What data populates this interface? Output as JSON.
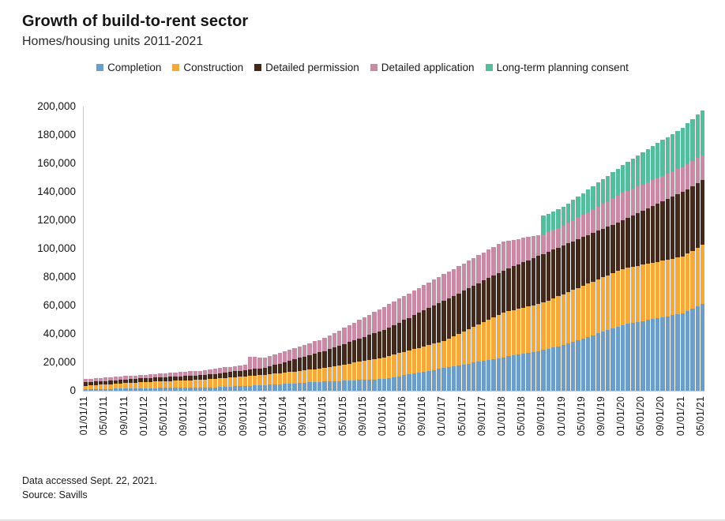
{
  "header": {
    "title": "Growth of build-to-rent sector",
    "subtitle": "Homes/housing units 2011-2021"
  },
  "footer": {
    "line1": "Data accessed Sept. 22, 2021.",
    "line2": "Source: Savills"
  },
  "chart_data": {
    "type": "bar",
    "stacked": true,
    "title": "Growth of build-to-rent sector",
    "subtitle": "Homes/housing units 2011-2021",
    "xlabel": "",
    "ylabel": "",
    "ylim": [
      0,
      200000
    ],
    "y_tick_step": 20000,
    "y_tick_labels": [
      "0",
      "20,000",
      "40,000",
      "60,000",
      "80,000",
      "100,000",
      "120,000",
      "140,000",
      "160,000",
      "180,000",
      "200,000"
    ],
    "x_tick_every": 4,
    "grid": false,
    "legend_position": "top",
    "categories": [
      "01/01/11",
      "02/01/11",
      "03/01/11",
      "04/01/11",
      "05/01/11",
      "06/01/11",
      "07/01/11",
      "08/01/11",
      "09/01/11",
      "10/01/11",
      "11/01/11",
      "12/01/11",
      "01/01/12",
      "02/01/12",
      "03/01/12",
      "04/01/12",
      "05/01/12",
      "06/01/12",
      "07/01/12",
      "08/01/12",
      "09/01/12",
      "10/01/12",
      "11/01/12",
      "12/01/12",
      "01/01/13",
      "02/01/13",
      "03/01/13",
      "04/01/13",
      "05/01/13",
      "06/01/13",
      "07/01/13",
      "08/01/13",
      "09/01/13",
      "10/01/13",
      "11/01/13",
      "12/01/13",
      "01/01/14",
      "02/01/14",
      "03/01/14",
      "04/01/14",
      "05/01/14",
      "06/01/14",
      "07/01/14",
      "08/01/14",
      "09/01/14",
      "10/01/14",
      "11/01/14",
      "12/01/14",
      "01/01/15",
      "02/01/15",
      "03/01/15",
      "04/01/15",
      "05/01/15",
      "06/01/15",
      "07/01/15",
      "08/01/15",
      "09/01/15",
      "10/01/15",
      "11/01/15",
      "12/01/15",
      "01/01/16",
      "02/01/16",
      "03/01/16",
      "04/01/16",
      "05/01/16",
      "06/01/16",
      "07/01/16",
      "08/01/16",
      "09/01/16",
      "10/01/16",
      "11/01/16",
      "12/01/16",
      "01/01/17",
      "02/01/17",
      "03/01/17",
      "04/01/17",
      "05/01/17",
      "06/01/17",
      "07/01/17",
      "08/01/17",
      "09/01/17",
      "10/01/17",
      "11/01/17",
      "12/01/17",
      "01/01/18",
      "02/01/18",
      "03/01/18",
      "04/01/18",
      "05/01/18",
      "06/01/18",
      "07/01/18",
      "08/01/18",
      "09/01/18",
      "10/01/18",
      "11/01/18",
      "12/01/18",
      "01/01/19",
      "02/01/19",
      "03/01/19",
      "04/01/19",
      "05/01/19",
      "06/01/19",
      "07/01/19",
      "08/01/19",
      "09/01/19",
      "10/01/19",
      "11/01/19",
      "12/01/19",
      "01/01/20",
      "02/01/20",
      "03/01/20",
      "04/01/20",
      "05/01/20",
      "06/01/20",
      "07/01/20",
      "08/01/20",
      "09/01/20",
      "10/01/20",
      "11/01/20",
      "12/01/20",
      "01/01/21",
      "02/01/21",
      "03/01/21",
      "04/01/21",
      "05/01/21"
    ],
    "series": [
      {
        "name": "Completion",
        "color": "#6D9EC7",
        "values": [
          900,
          1000,
          1050,
          1150,
          1250,
          1300,
          1400,
          1500,
          1550,
          1650,
          1750,
          1800,
          1900,
          1925,
          1950,
          1975,
          2000,
          2025,
          2050,
          2075,
          2100,
          2125,
          2150,
          2175,
          2200,
          2350,
          2500,
          2650,
          2800,
          2950,
          3100,
          3250,
          3400,
          3550,
          3700,
          3850,
          4000,
          4200,
          4400,
          4600,
          4800,
          5050,
          5250,
          5450,
          5650,
          5900,
          6100,
          6300,
          6500,
          6650,
          6800,
          6950,
          7100,
          7250,
          7400,
          7550,
          7700,
          7850,
          8000,
          8150,
          8300,
          8950,
          9600,
          10200,
          10850,
          11500,
          12150,
          12800,
          13450,
          14100,
          14700,
          15350,
          16000,
          16650,
          17250,
          17900,
          18550,
          19150,
          19800,
          20450,
          21050,
          21700,
          22350,
          22950,
          23600,
          24250,
          24900,
          25500,
          26150,
          26800,
          27400,
          28050,
          28700,
          29500,
          30350,
          31200,
          32000,
          33200,
          34400,
          35600,
          36750,
          37950,
          39150,
          40350,
          41550,
          42700,
          43900,
          45100,
          46300,
          47000,
          47700,
          48400,
          49050,
          49750,
          50450,
          51150,
          51850,
          52500,
          53200,
          53900,
          54600,
          56250,
          57850,
          59500,
          61100
        ]
      },
      {
        "name": "Construction",
        "color": "#F4A93C",
        "values": [
          2600,
          2750,
          2900,
          3050,
          3150,
          3300,
          3450,
          3600,
          3750,
          3850,
          4000,
          4150,
          4300,
          4400,
          4500,
          4650,
          4750,
          4850,
          4950,
          5050,
          5150,
          5300,
          5400,
          5500,
          5600,
          5750,
          5850,
          6000,
          6150,
          6250,
          6400,
          6550,
          6650,
          6800,
          6950,
          7050,
          7200,
          7400,
          7600,
          7800,
          7950,
          8150,
          8350,
          8550,
          8750,
          8900,
          9100,
          9300,
          9500,
          10000,
          10450,
          10950,
          11450,
          11900,
          12400,
          12900,
          13350,
          13850,
          14350,
          14800,
          15300,
          15600,
          15900,
          16250,
          16550,
          16850,
          17150,
          17450,
          17750,
          18100,
          18400,
          18700,
          19000,
          20050,
          21100,
          22100,
          23150,
          24200,
          25250,
          26300,
          27350,
          28400,
          29400,
          30450,
          31500,
          31700,
          31950,
          32150,
          32400,
          32600,
          32850,
          33100,
          33300,
          34000,
          34650,
          35300,
          36000,
          36300,
          36600,
          36900,
          37150,
          37450,
          37750,
          38050,
          38350,
          38600,
          38900,
          39200,
          39500,
          39525,
          39550,
          39575,
          39600,
          39625,
          39650,
          39675,
          39700,
          39725,
          39750,
          39775,
          39800,
          40300,
          40750,
          41250,
          41700
        ]
      },
      {
        "name": "Detailed permission",
        "color": "#43291B",
        "values": [
          2500,
          2500,
          2550,
          2550,
          2550,
          2600,
          2600,
          2600,
          2650,
          2650,
          2650,
          2700,
          2700,
          2750,
          2800,
          2850,
          2900,
          2950,
          3000,
          3050,
          3100,
          3150,
          3200,
          3250,
          3300,
          3450,
          3600,
          3700,
          3850,
          4000,
          4150,
          4300,
          4450,
          4550,
          4700,
          4850,
          5000,
          5600,
          6150,
          6750,
          7350,
          7900,
          8500,
          9100,
          9650,
          10250,
          10850,
          11400,
          12000,
          12600,
          13250,
          13850,
          14450,
          15100,
          15700,
          16300,
          16950,
          17550,
          18150,
          18800,
          19400,
          20150,
          20850,
          21600,
          22350,
          23050,
          23800,
          24550,
          25250,
          26000,
          26750,
          27450,
          28200,
          28300,
          28450,
          28550,
          28650,
          28800,
          28900,
          29000,
          29150,
          29250,
          29350,
          29500,
          29600,
          30200,
          30800,
          31350,
          31950,
          32550,
          33100,
          33700,
          34300,
          34300,
          34300,
          34300,
          34300,
          34275,
          34250,
          34225,
          34200,
          34175,
          34150,
          34125,
          34100,
          34075,
          34050,
          34025,
          34000,
          34950,
          35900,
          36850,
          37800,
          38750,
          39700,
          40650,
          41600,
          42550,
          43500,
          44450,
          45400,
          45400,
          45400,
          45400,
          45400
        ]
      },
      {
        "name": "Detailed application",
        "color": "#C98AA6",
        "values": [
          2100,
          2150,
          2150,
          2200,
          2250,
          2250,
          2300,
          2350,
          2350,
          2400,
          2450,
          2450,
          2500,
          2550,
          2650,
          2700,
          2750,
          2850,
          2900,
          2950,
          3050,
          3100,
          3150,
          3250,
          3300,
          3400,
          3500,
          3550,
          3650,
          3750,
          3800,
          3900,
          4000,
          9000,
          8400,
          7800,
          7200,
          7350,
          7500,
          7650,
          7800,
          7950,
          8100,
          8250,
          8400,
          8550,
          8700,
          8850,
          9000,
          9600,
          10150,
          10750,
          11350,
          11900,
          12500,
          13100,
          13650,
          14250,
          14850,
          15400,
          16000,
          16250,
          16450,
          16700,
          16950,
          17150,
          17400,
          17650,
          17850,
          18100,
          18350,
          18550,
          18800,
          18950,
          19050,
          19200,
          19350,
          19450,
          19600,
          19750,
          19850,
          20000,
          20150,
          20250,
          20400,
          19550,
          18700,
          17850,
          17050,
          16200,
          15350,
          14500,
          13900,
          13900,
          13900,
          13900,
          13900,
          14350,
          14850,
          15300,
          15750,
          16250,
          16700,
          17150,
          17650,
          18100,
          18550,
          19050,
          19500,
          19350,
          19200,
          19050,
          18850,
          18700,
          18550,
          18400,
          18250,
          18050,
          17900,
          17750,
          17600,
          17600,
          17600,
          17600,
          17600
        ]
      },
      {
        "name": "Long-term planning consent",
        "color": "#55BD9E",
        "values": [
          0,
          0,
          0,
          0,
          0,
          0,
          0,
          0,
          0,
          0,
          0,
          0,
          0,
          0,
          0,
          0,
          0,
          0,
          0,
          0,
          0,
          0,
          0,
          0,
          0,
          0,
          0,
          0,
          0,
          0,
          0,
          0,
          0,
          0,
          0,
          0,
          0,
          0,
          0,
          0,
          0,
          0,
          0,
          0,
          0,
          0,
          0,
          0,
          0,
          0,
          0,
          0,
          0,
          0,
          0,
          0,
          0,
          0,
          0,
          0,
          0,
          0,
          0,
          0,
          0,
          0,
          0,
          0,
          0,
          0,
          0,
          0,
          0,
          0,
          0,
          0,
          0,
          0,
          0,
          0,
          0,
          0,
          0,
          0,
          0,
          0,
          0,
          0,
          0,
          0,
          0,
          0,
          12900,
          12925,
          12950,
          12975,
          13000,
          13550,
          14100,
          14600,
          15150,
          15700,
          16250,
          16800,
          17350,
          17900,
          18400,
          18950,
          19500,
          20200,
          20900,
          21600,
          22250,
          22950,
          23650,
          24350,
          25050,
          25700,
          26400,
          27100,
          27800,
          28700,
          29650,
          30600,
          31500
        ]
      }
    ]
  }
}
